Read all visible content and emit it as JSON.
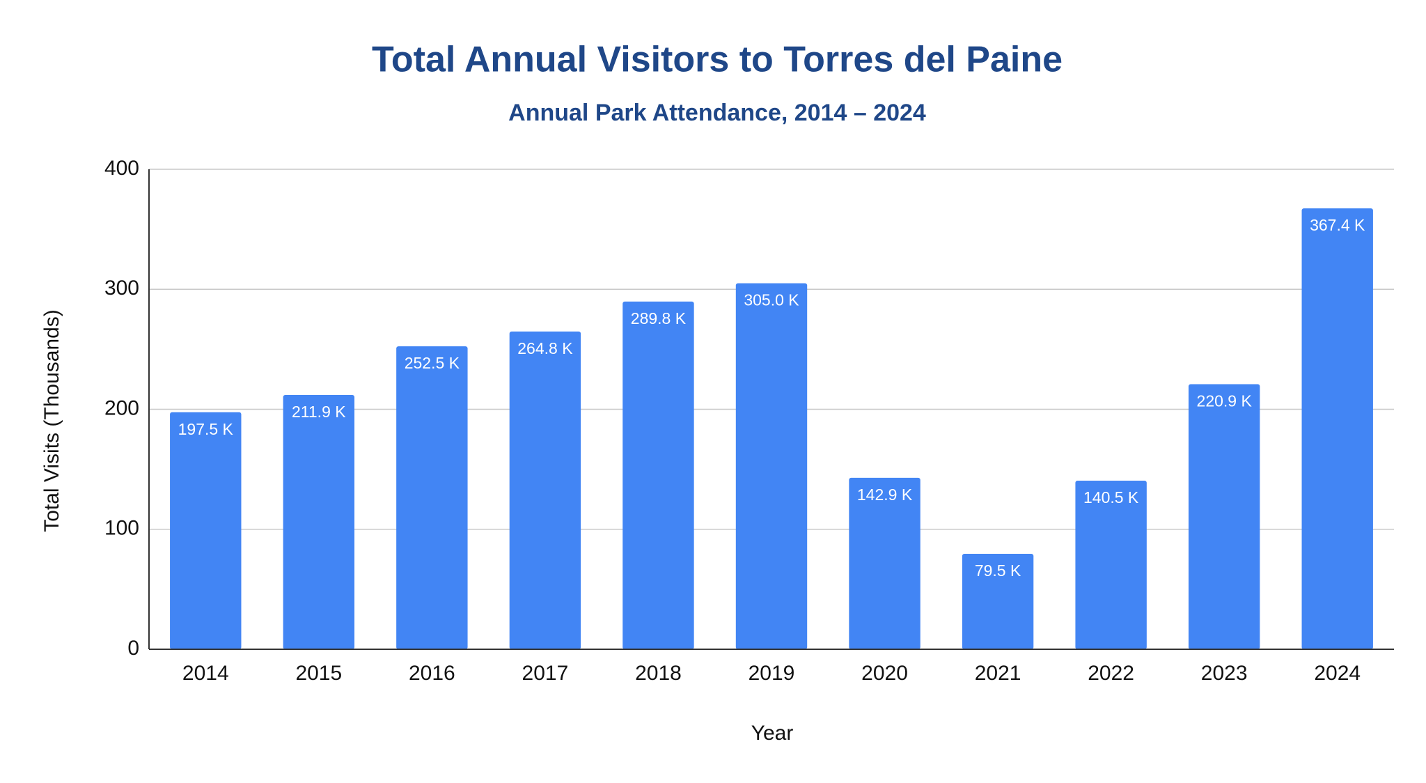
{
  "chart_data": {
    "type": "bar",
    "title": "Total Annual Visitors to Torres del Paine",
    "subtitle": "Annual Park Attendance, 2014 – 2024",
    "x_label": "Year",
    "y_label": "Total Visits (Thousands)",
    "categories": [
      "2014",
      "2015",
      "2016",
      "2017",
      "2018",
      "2019",
      "2020",
      "2021",
      "2022",
      "2023",
      "2024"
    ],
    "values": [
      197.5,
      211.9,
      252.5,
      264.8,
      289.8,
      305.0,
      142.9,
      79.5,
      140.5,
      220.9,
      367.4
    ],
    "value_labels": [
      "197.5 K",
      "211.9 K",
      "252.5 K",
      "264.8 K",
      "289.8 K",
      "305.0 K",
      "142.9 K",
      "79.5 K",
      "140.5 K",
      "220.9 K",
      "367.4 K"
    ],
    "color": "#4285f4",
    "ylim": [
      0,
      400
    ],
    "yticks": [
      0,
      100,
      200,
      300,
      400
    ],
    "grid": true
  }
}
